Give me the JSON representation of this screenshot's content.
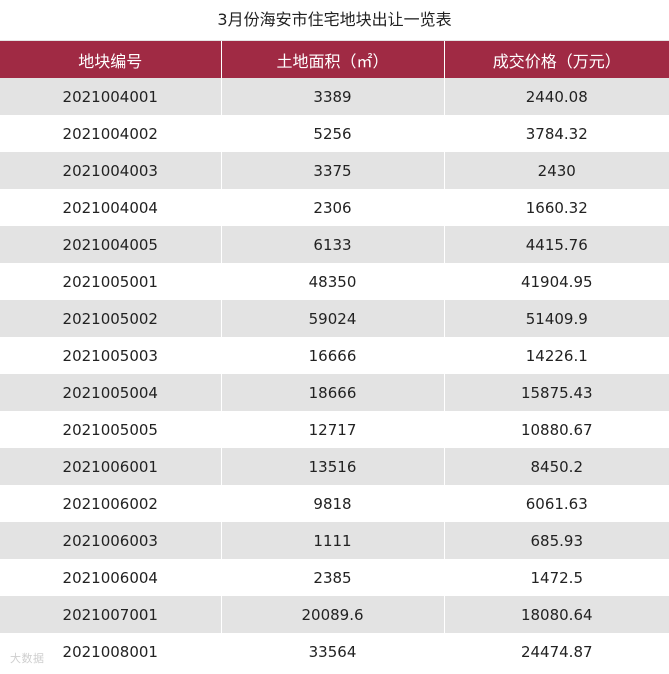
{
  "title": "3月份海安市住宅地块出让一览表",
  "headers": [
    "地块编号",
    "土地面积（㎡）",
    "成交价格（万元）"
  ],
  "rows": [
    [
      "2021004001",
      "3389",
      "2440.08"
    ],
    [
      "2021004002",
      "5256",
      "3784.32"
    ],
    [
      "2021004003",
      "3375",
      "2430"
    ],
    [
      "2021004004",
      "2306",
      "1660.32"
    ],
    [
      "2021004005",
      "6133",
      "4415.76"
    ],
    [
      "2021005001",
      "48350",
      "41904.95"
    ],
    [
      "2021005002",
      "59024",
      "51409.9"
    ],
    [
      "2021005003",
      "16666",
      "14226.1"
    ],
    [
      "2021005004",
      "18666",
      "15875.43"
    ],
    [
      "2021005005",
      "12717",
      "10880.67"
    ],
    [
      "2021006001",
      "13516",
      "8450.2"
    ],
    [
      "2021006002",
      "9818",
      "6061.63"
    ],
    [
      "2021006003",
      "1111",
      "685.93"
    ],
    [
      "2021006004",
      "2385",
      "1472.5"
    ],
    [
      "2021007001",
      "20089.6",
      "18080.64"
    ],
    [
      "2021008001",
      "33564",
      "24474.87"
    ]
  ],
  "watermark": "大数据"
}
